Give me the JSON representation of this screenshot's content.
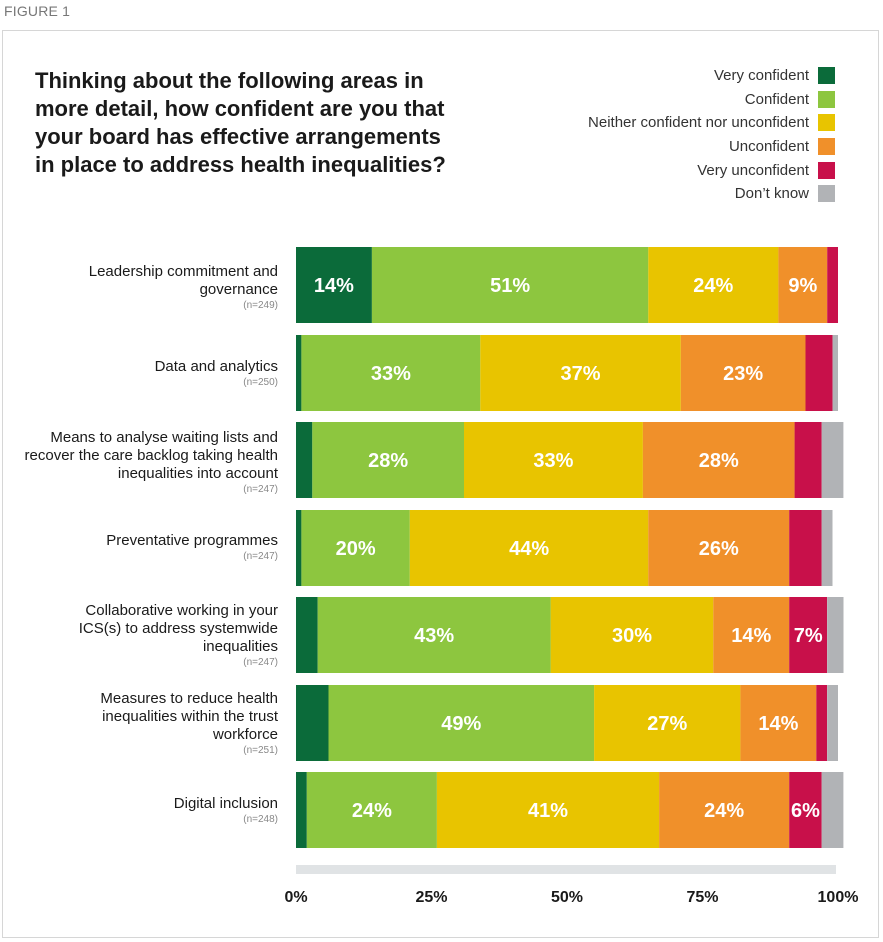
{
  "figure_label": "FIGURE 1",
  "chart_data": {
    "type": "bar",
    "orientation": "horizontal",
    "stacked": true,
    "title": "Thinking about the following areas in more detail, how confident are you that your board has effective arrangements in place to address health inequalities?",
    "xlim": [
      0,
      100
    ],
    "x_ticks": [
      "0%",
      "25%",
      "50%",
      "75%",
      "100%"
    ],
    "legend_position": "top-right",
    "grid": false,
    "categories": [
      {
        "label": "Leadership commitment and governance",
        "n": "(n=249)"
      },
      {
        "label": "Data and analytics",
        "n": "(n=250)"
      },
      {
        "label": "Means to analyse waiting lists and recover the care backlog taking health inequalities into account",
        "n": "(n=247)"
      },
      {
        "label": "Preventative programmes",
        "n": "(n=247)"
      },
      {
        "label": "Collaborative working in your ICS(s) to address systemwide inequalities",
        "n": "(n=247)"
      },
      {
        "label": "Measures to reduce health inequalities within the trust workforce",
        "n": "(n=251)"
      },
      {
        "label": "Digital inclusion",
        "n": "(n=248)"
      }
    ],
    "series": [
      {
        "name": "Very confident",
        "color": "#0b6b3a",
        "values": [
          14,
          1,
          3,
          1,
          4,
          6,
          2
        ],
        "labels": [
          "14%",
          "",
          "",
          "",
          "",
          "",
          ""
        ]
      },
      {
        "name": "Confident",
        "color": "#8dc63f",
        "values": [
          51,
          33,
          28,
          20,
          43,
          49,
          24
        ],
        "labels": [
          "51%",
          "33%",
          "28%",
          "20%",
          "43%",
          "49%",
          "24%"
        ]
      },
      {
        "name": "Neither confident nor unconfident",
        "color": "#e8c400",
        "values": [
          24,
          37,
          33,
          44,
          30,
          27,
          41
        ],
        "labels": [
          "24%",
          "37%",
          "33%",
          "44%",
          "30%",
          "27%",
          "41%"
        ]
      },
      {
        "name": "Unconfident",
        "color": "#f0902a",
        "values": [
          9,
          23,
          28,
          26,
          14,
          14,
          24
        ],
        "labels": [
          "9%",
          "23%",
          "28%",
          "26%",
          "14%",
          "14%",
          "24%"
        ]
      },
      {
        "name": "Very unconfident",
        "color": "#c8104a",
        "values": [
          2,
          5,
          5,
          6,
          7,
          2,
          6
        ],
        "labels": [
          "",
          "",
          "",
          "",
          "7%",
          "",
          "6%"
        ]
      },
      {
        "name": "Don’t know",
        "color": "#b1b3b6",
        "values": [
          0,
          1,
          4,
          2,
          3,
          2,
          4
        ],
        "labels": [
          "",
          "",
          "",
          "",
          "",
          "",
          ""
        ]
      }
    ]
  }
}
